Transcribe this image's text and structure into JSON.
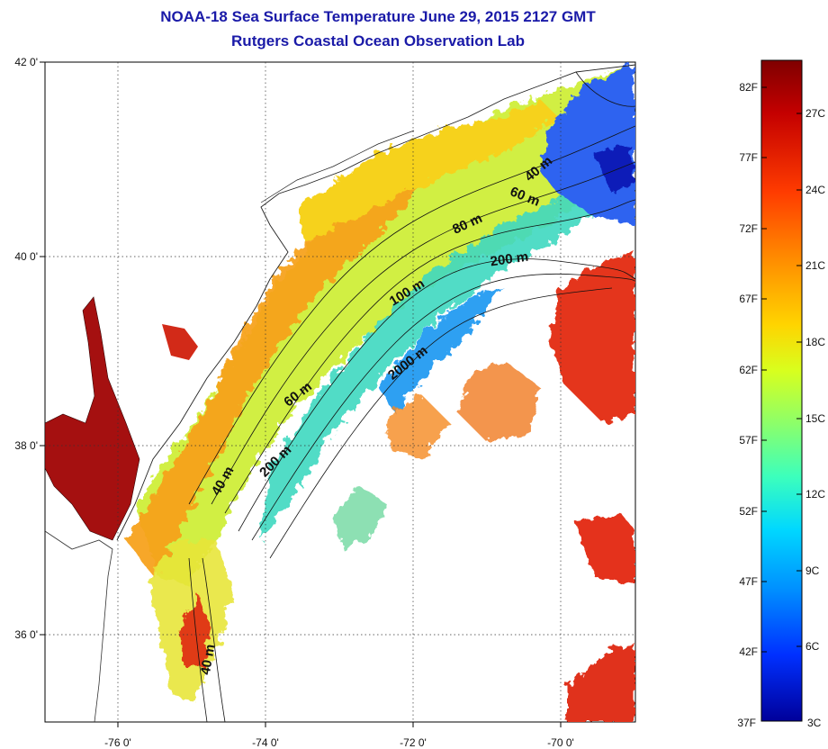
{
  "title": {
    "line1": "NOAA-18 Sea Surface Temperature June 29, 2015 2127 GMT",
    "line2": "Rutgers Coastal Ocean Observation Lab"
  },
  "map": {
    "lon_range": [
      -77.0,
      -69.0
    ],
    "lat_range": [
      35.0,
      42.0
    ],
    "lon_ticks": [
      {
        "value": -76,
        "label": "-76 0'"
      },
      {
        "value": -74,
        "label": "-74 0'"
      },
      {
        "value": -72,
        "label": "-72 0'"
      },
      {
        "value": -70,
        "label": "-70 0'"
      }
    ],
    "lat_ticks": [
      {
        "value": 42,
        "label": "42 0'"
      },
      {
        "value": 40,
        "label": "40 0'"
      },
      {
        "value": 38,
        "label": "38 0'"
      },
      {
        "value": 36,
        "label": "36 0'"
      }
    ],
    "grid": true,
    "contour_labels": [
      "40 m",
      "60 m",
      "80 m",
      "200 m",
      "100 m",
      "2000 m",
      "60 m",
      "200 m",
      "40 m",
      "40 m"
    ]
  },
  "colorbar": {
    "fahrenheit": [
      "82F",
      "77F",
      "72F",
      "67F",
      "62F",
      "57F",
      "52F",
      "47F",
      "42F",
      "37F"
    ],
    "celsius": [
      "27C",
      "24C",
      "21C",
      "18C",
      "15C",
      "12C",
      "9C",
      "6C",
      "3C"
    ],
    "colors": [
      "#7f0000",
      "#d40000",
      "#ff3c00",
      "#ff8c00",
      "#ffd400",
      "#d8ff1e",
      "#8cff6a",
      "#3cffbc",
      "#00d8ff",
      "#0090ff",
      "#0040ff",
      "#00009a"
    ]
  }
}
